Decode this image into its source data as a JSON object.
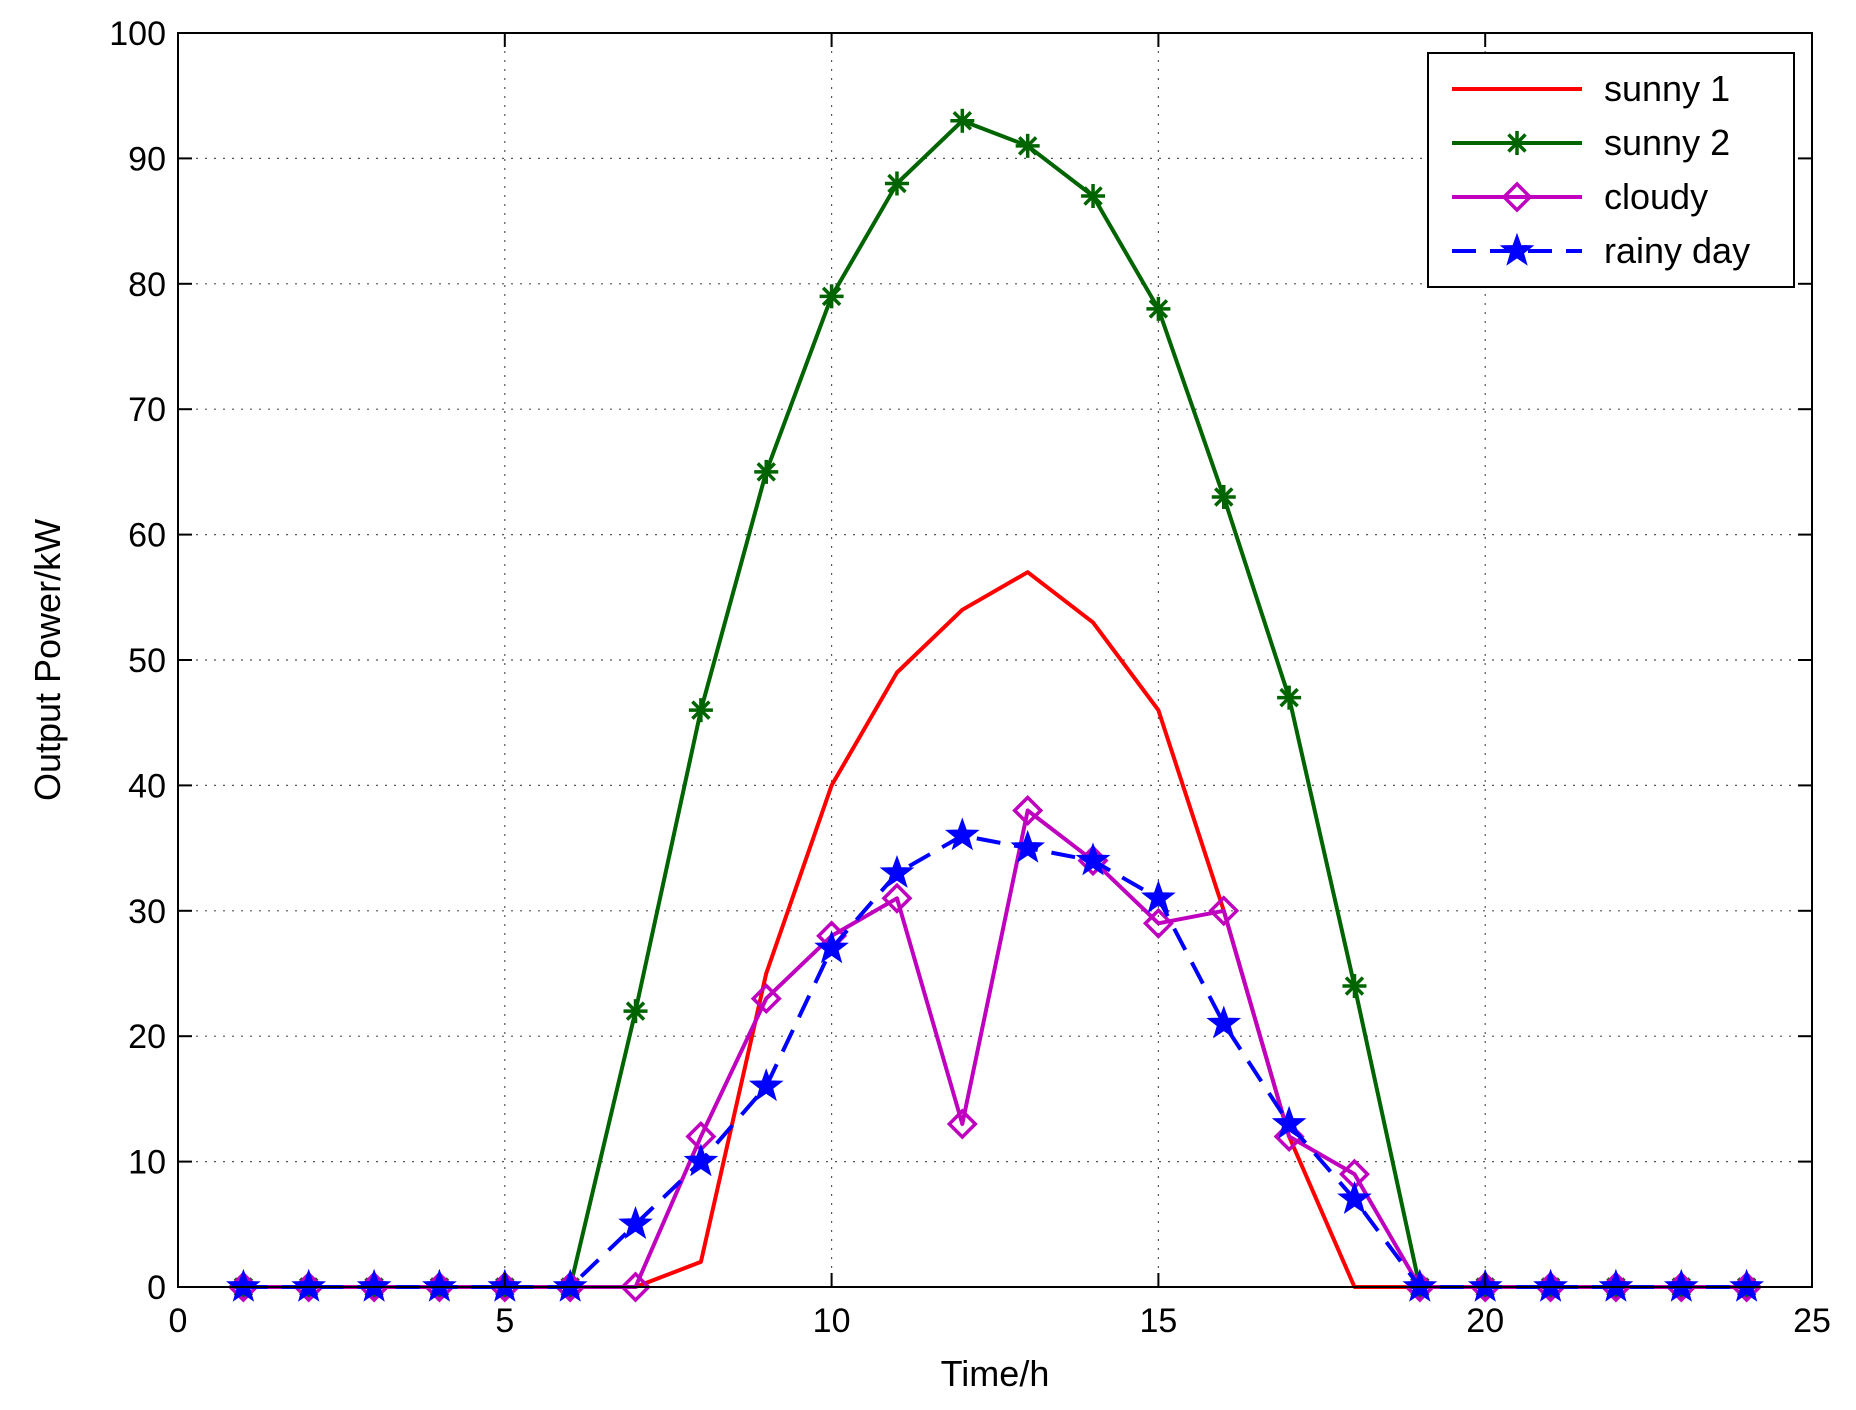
{
  "chart_data": {
    "type": "line",
    "title": "",
    "xlabel": "Time/h",
    "ylabel": "Output Power/kW",
    "xlim": [
      0,
      25
    ],
    "ylim": [
      0,
      100
    ],
    "xticks": [
      0,
      5,
      10,
      15,
      20,
      25
    ],
    "yticks": [
      0,
      10,
      20,
      30,
      40,
      50,
      60,
      70,
      80,
      90,
      100
    ],
    "grid": true,
    "legend_position": "top-right",
    "x": [
      1,
      2,
      3,
      4,
      5,
      6,
      7,
      8,
      9,
      10,
      11,
      12,
      13,
      14,
      15,
      16,
      17,
      18,
      19,
      20,
      21,
      22,
      23,
      24
    ],
    "series": [
      {
        "name": "sunny 1",
        "color": "#ff0000",
        "marker": "none",
        "dash": "solid",
        "values": [
          0,
          0,
          0,
          0,
          0,
          0,
          0,
          2,
          25,
          40,
          49,
          54,
          57,
          53,
          46,
          30,
          12,
          0,
          0,
          0,
          0,
          0,
          0,
          0
        ]
      },
      {
        "name": "sunny 2",
        "color": "#006400",
        "marker": "asterisk",
        "dash": "solid",
        "values": [
          0,
          0,
          0,
          0,
          0,
          0,
          22,
          46,
          65,
          79,
          88,
          93,
          91,
          87,
          78,
          63,
          47,
          24,
          0,
          0,
          0,
          0,
          0,
          0
        ]
      },
      {
        "name": "cloudy",
        "color": "#bf00bf",
        "marker": "diamond",
        "dash": "solid",
        "values": [
          0,
          0,
          0,
          0,
          0,
          0,
          0,
          12,
          23,
          28,
          31,
          13,
          38,
          34,
          29,
          30,
          12,
          9,
          0,
          0,
          0,
          0,
          0,
          0
        ]
      },
      {
        "name": "rainy day",
        "color": "#0000ff",
        "marker": "star",
        "dash": "dashed",
        "values": [
          0,
          0,
          0,
          0,
          0,
          0,
          5,
          10,
          16,
          27,
          33,
          36,
          35,
          34,
          31,
          21,
          13,
          7,
          0,
          0,
          0,
          0,
          0,
          0
        ]
      }
    ]
  }
}
